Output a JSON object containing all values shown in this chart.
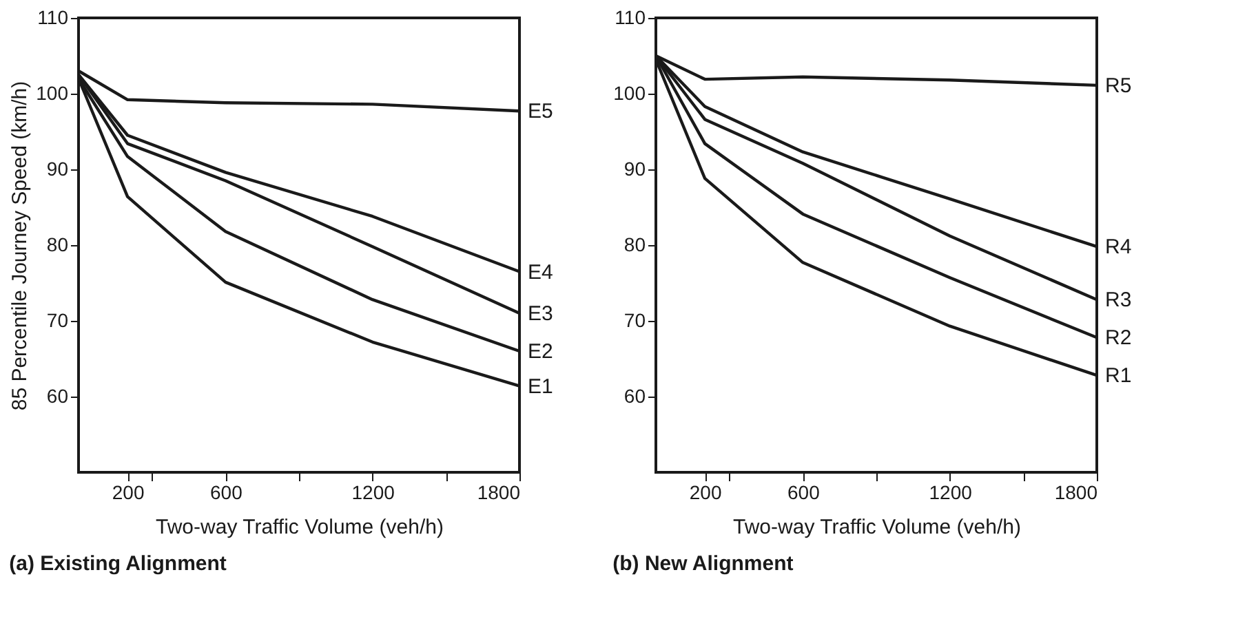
{
  "chart_data": [
    {
      "type": "line",
      "title": "(a) Existing Alignment",
      "xlabel": "Two-way Traffic Volume (veh/h)",
      "ylabel": "85 Percentile Journey Speed (km/h)",
      "x": [
        0,
        200,
        600,
        1200,
        1800
      ],
      "xlim": [
        0,
        1800
      ],
      "xticks": [
        200,
        {
          "value": 300,
          "label": null
        },
        600,
        {
          "value": 900,
          "label": null
        },
        1200,
        {
          "value": 1500,
          "label": null
        },
        1800
      ],
      "ylim": [
        50,
        110
      ],
      "yticks": [
        60,
        70,
        80,
        90,
        100,
        110
      ],
      "grid": false,
      "legend": false,
      "series": [
        {
          "name": "E5",
          "color": "#1a1a1a",
          "values": [
            103,
            99.2,
            98.8,
            98.6,
            97.7
          ]
        },
        {
          "name": "E4",
          "color": "#1a1a1a",
          "values": [
            102.5,
            94.5,
            89.6,
            83.8,
            76.5
          ]
        },
        {
          "name": "E3",
          "color": "#1a1a1a",
          "values": [
            102.5,
            93.4,
            88.5,
            79.8,
            71
          ]
        },
        {
          "name": "E2",
          "color": "#1a1a1a",
          "values": [
            102,
            91.7,
            81.8,
            72.8,
            66
          ]
        },
        {
          "name": "E1",
          "color": "#1a1a1a",
          "values": [
            102,
            86.4,
            75.1,
            67.2,
            61.4
          ]
        }
      ]
    },
    {
      "type": "line",
      "title": "(b) New Alignment",
      "xlabel": "Two-way Traffic Volume (veh/h)",
      "x": [
        0,
        200,
        600,
        1200,
        1800
      ],
      "xlim": [
        0,
        1800
      ],
      "xticks": [
        200,
        {
          "value": 300,
          "label": null
        },
        600,
        {
          "value": 900,
          "label": null
        },
        1200,
        {
          "value": 1500,
          "label": null
        },
        1800
      ],
      "ylim": [
        50,
        110
      ],
      "yticks": [
        60,
        70,
        80,
        90,
        100,
        110
      ],
      "grid": false,
      "legend": false,
      "series": [
        {
          "name": "R5",
          "color": "#1a1a1a",
          "values": [
            105,
            101.9,
            102.2,
            101.8,
            101.1
          ]
        },
        {
          "name": "R4",
          "color": "#1a1a1a",
          "values": [
            105,
            98.3,
            92.3,
            86.1,
            79.8
          ]
        },
        {
          "name": "R3",
          "color": "#1a1a1a",
          "values": [
            105,
            96.6,
            90.8,
            81.2,
            72.8
          ]
        },
        {
          "name": "R2",
          "color": "#1a1a1a",
          "values": [
            105,
            93.4,
            84.1,
            75.7,
            67.8
          ]
        },
        {
          "name": "R1",
          "color": "#1a1a1a",
          "values": [
            104.5,
            88.8,
            77.7,
            69.3,
            62.8
          ]
        }
      ]
    }
  ]
}
